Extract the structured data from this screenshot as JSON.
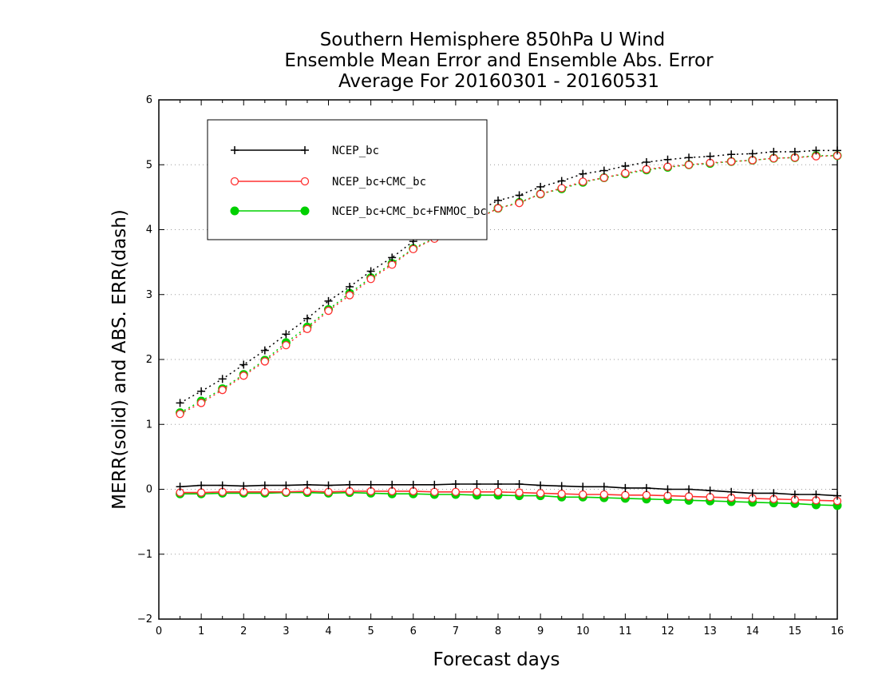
{
  "chart_data": {
    "type": "line",
    "title_lines": [
      "Southern Hemisphere 850hPa U Wind",
      "Ensemble Mean Error and Ensemble Abs. Error",
      "Average For 20160301 - 20160531"
    ],
    "xlabel": "Forecast days",
    "ylabel": "MERR(solid) and ABS. ERR(dash)",
    "xlim": [
      0,
      16
    ],
    "ylim": [
      -2,
      6
    ],
    "x_ticks": [
      "0",
      "1",
      "2",
      "3",
      "4",
      "5",
      "6",
      "7",
      "8",
      "9",
      "10",
      "11",
      "12",
      "13",
      "14",
      "15",
      "16"
    ],
    "y_ticks": [
      "6",
      "5",
      "4",
      "3",
      "2",
      "1",
      "0",
      "-1",
      "-2"
    ],
    "grid": "dotted horizontal",
    "legend_position": "upper-left",
    "x": [
      0.5,
      1,
      1.5,
      2,
      2.5,
      3,
      3.5,
      4,
      4.5,
      5,
      5.5,
      6,
      6.5,
      7,
      7.5,
      8,
      8.5,
      9,
      9.5,
      10,
      10.5,
      11,
      11.5,
      12,
      12.5,
      13,
      13.5,
      14,
      14.5,
      15,
      15.5,
      16
    ],
    "series": [
      {
        "name": "NCEP_bc",
        "color": "#000000",
        "marker": "plus",
        "abs_err": [
          1.33,
          1.51,
          1.7,
          1.92,
          2.14,
          2.39,
          2.63,
          2.9,
          3.12,
          3.36,
          3.57,
          3.82,
          3.98,
          4.13,
          4.28,
          4.45,
          4.53,
          4.66,
          4.75,
          4.86,
          4.91,
          4.98,
          5.04,
          5.08,
          5.11,
          5.13,
          5.16,
          5.17,
          5.2,
          5.2,
          5.22,
          5.22
        ],
        "mean_err": [
          0.04,
          0.06,
          0.06,
          0.05,
          0.06,
          0.06,
          0.07,
          0.06,
          0.07,
          0.07,
          0.07,
          0.07,
          0.07,
          0.08,
          0.08,
          0.08,
          0.08,
          0.06,
          0.05,
          0.04,
          0.04,
          0.02,
          0.02,
          0.0,
          0.0,
          -0.02,
          -0.04,
          -0.06,
          -0.06,
          -0.08,
          -0.08,
          -0.1
        ]
      },
      {
        "name": "NCEP_bc+CMC_bc",
        "color": "#ff3030",
        "marker": "open-circle",
        "abs_err": [
          1.16,
          1.33,
          1.53,
          1.75,
          1.97,
          2.22,
          2.47,
          2.75,
          2.99,
          3.24,
          3.46,
          3.7,
          3.86,
          4.01,
          4.16,
          4.33,
          4.41,
          4.55,
          4.64,
          4.74,
          4.8,
          4.87,
          4.93,
          4.97,
          5.0,
          5.03,
          5.05,
          5.07,
          5.1,
          5.11,
          5.13,
          5.14
        ],
        "mean_err": [
          -0.05,
          -0.05,
          -0.04,
          -0.04,
          -0.04,
          -0.04,
          -0.03,
          -0.04,
          -0.03,
          -0.03,
          -0.03,
          -0.03,
          -0.04,
          -0.04,
          -0.04,
          -0.04,
          -0.05,
          -0.06,
          -0.07,
          -0.08,
          -0.08,
          -0.09,
          -0.09,
          -0.1,
          -0.11,
          -0.12,
          -0.13,
          -0.14,
          -0.15,
          -0.16,
          -0.17,
          -0.18
        ]
      },
      {
        "name": "NCEP_bc+CMC_bc+FNMOC_bc",
        "color": "#00d000",
        "marker": "filled-circle",
        "abs_err": [
          1.18,
          1.36,
          1.55,
          1.77,
          1.99,
          2.26,
          2.5,
          2.77,
          3.02,
          3.26,
          3.48,
          3.71,
          3.87,
          4.02,
          4.17,
          4.33,
          4.42,
          4.55,
          4.63,
          4.73,
          4.8,
          4.86,
          4.92,
          4.96,
          5.0,
          5.02,
          5.05,
          5.07,
          5.1,
          5.11,
          5.14,
          5.14
        ],
        "mean_err": [
          -0.07,
          -0.07,
          -0.06,
          -0.06,
          -0.06,
          -0.05,
          -0.05,
          -0.06,
          -0.05,
          -0.06,
          -0.07,
          -0.07,
          -0.08,
          -0.08,
          -0.09,
          -0.09,
          -0.1,
          -0.1,
          -0.12,
          -0.12,
          -0.13,
          -0.14,
          -0.15,
          -0.16,
          -0.17,
          -0.18,
          -0.19,
          -0.2,
          -0.21,
          -0.22,
          -0.24,
          -0.25
        ]
      }
    ]
  }
}
